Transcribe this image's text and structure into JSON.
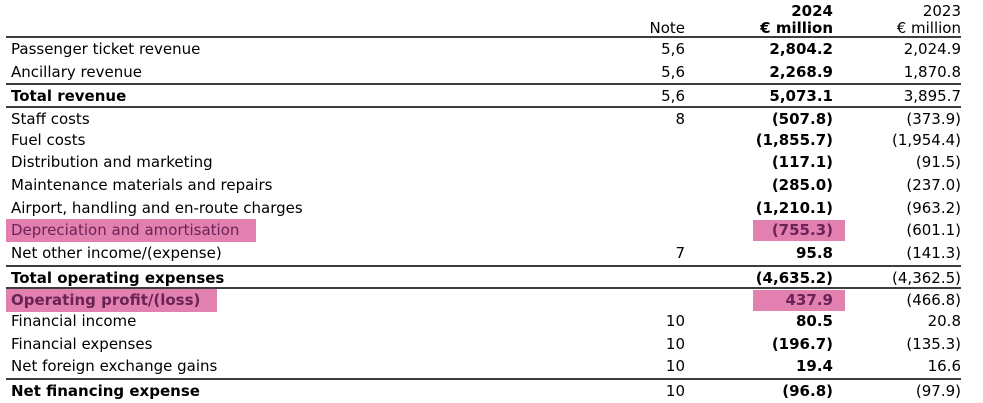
{
  "table": {
    "header": {
      "note_label": "Note",
      "year_2024": "2024",
      "unit_2024": "€ million",
      "year_2023": "2023",
      "unit_2023": "€ million"
    },
    "rows": [
      {
        "label": "Passenger ticket revenue",
        "note": "5,6",
        "v2024": "2,804.2",
        "v2023": "2,024.9",
        "emphasis": false,
        "highlighted": false,
        "rule_above": false
      },
      {
        "label": "Ancillary revenue",
        "note": "5,6",
        "v2024": "2,268.9",
        "v2023": "1,870.8",
        "emphasis": false,
        "highlighted": false,
        "rule_above": false
      },
      {
        "label": "Total revenue",
        "note": "5,6",
        "v2024": "5,073.1",
        "v2023": "3,895.7",
        "emphasis": true,
        "highlighted": false,
        "rule_above": true
      },
      {
        "label": "Staff costs",
        "note": "8",
        "v2024": "(507.8)",
        "v2023": "(373.9)",
        "emphasis": false,
        "highlighted": false,
        "rule_above": true
      },
      {
        "label": "Fuel costs",
        "note": "",
        "v2024": "(1,855.7)",
        "v2023": "(1,954.4)",
        "emphasis": false,
        "highlighted": false,
        "rule_above": false
      },
      {
        "label": "Distribution and marketing",
        "note": "",
        "v2024": "(117.1)",
        "v2023": "(91.5)",
        "emphasis": false,
        "highlighted": false,
        "rule_above": false
      },
      {
        "label": "Maintenance materials and repairs",
        "note": "",
        "v2024": "(285.0)",
        "v2023": "(237.0)",
        "emphasis": false,
        "highlighted": false,
        "rule_above": false
      },
      {
        "label": "Airport, handling and en-route charges",
        "note": "",
        "v2024": "(1,210.1)",
        "v2023": "(963.2)",
        "emphasis": false,
        "highlighted": false,
        "rule_above": false
      },
      {
        "label": "Depreciation and amortisation",
        "note": "",
        "v2024": "(755.3)",
        "v2023": "(601.1)",
        "emphasis": false,
        "highlighted": true,
        "rule_above": false
      },
      {
        "label": "Net other income/(expense)",
        "note": "7",
        "v2024": "95.8",
        "v2023": "(141.3)",
        "emphasis": false,
        "highlighted": false,
        "rule_above": false
      },
      {
        "label": "Total operating expenses",
        "note": "",
        "v2024": "(4,635.2)",
        "v2023": "(4,362.5)",
        "emphasis": true,
        "highlighted": false,
        "rule_above": true
      },
      {
        "label": "Operating profit/(loss)",
        "note": "",
        "v2024": "437.9",
        "v2023": "(466.8)",
        "emphasis": true,
        "highlighted": true,
        "rule_above": true
      },
      {
        "label": "Financial income",
        "note": "10",
        "v2024": "80.5",
        "v2023": "20.8",
        "emphasis": false,
        "highlighted": false,
        "rule_above": false
      },
      {
        "label": "Financial expenses",
        "note": "10",
        "v2024": "(196.7)",
        "v2023": "(135.3)",
        "emphasis": false,
        "highlighted": false,
        "rule_above": false
      },
      {
        "label": "Net foreign exchange gains",
        "note": "10",
        "v2024": "19.4",
        "v2023": "16.6",
        "emphasis": false,
        "highlighted": false,
        "rule_above": false
      },
      {
        "label": "Net financing expense",
        "note": "10",
        "v2024": "(96.8)",
        "v2023": "(97.9)",
        "emphasis": true,
        "highlighted": false,
        "rule_above": true
      }
    ],
    "colors": {
      "highlight": "#e280af",
      "highlight_text": "#6b2357",
      "rule": "#3d3d3d",
      "text": "#000000"
    }
  }
}
